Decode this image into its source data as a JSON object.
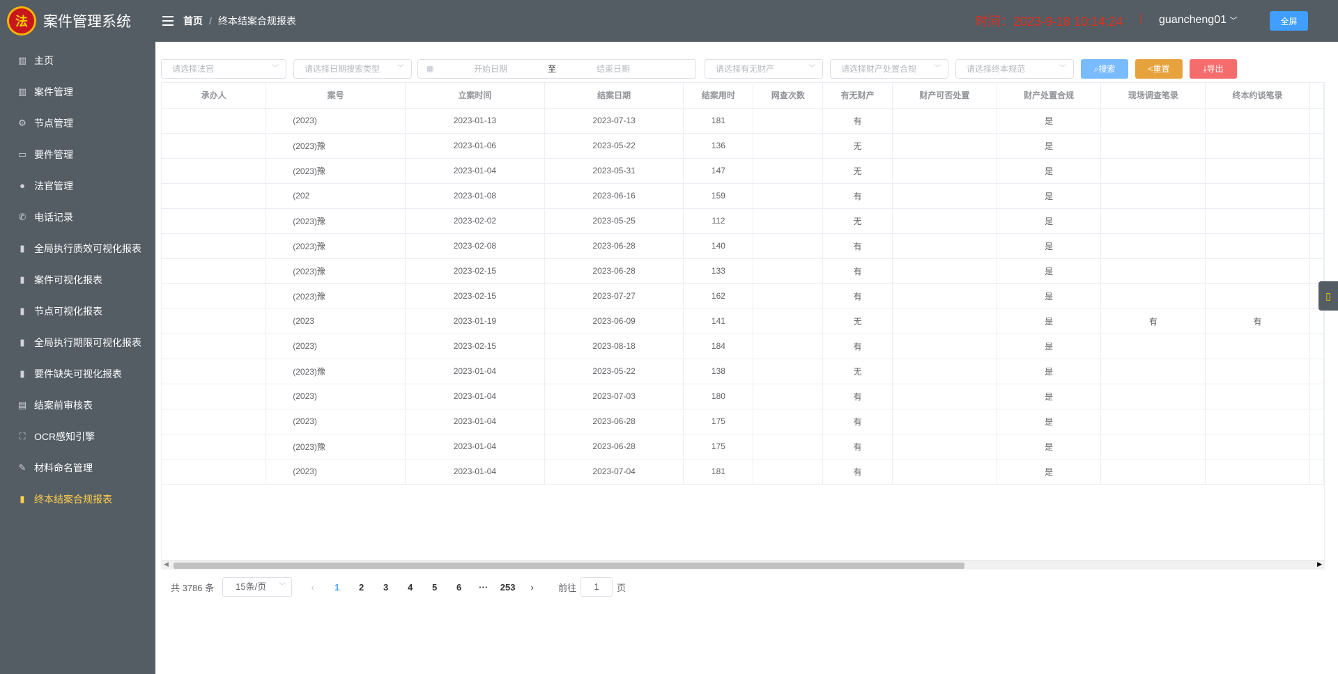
{
  "app": {
    "title": "案件管理系统",
    "emblem": "法"
  },
  "sidebar": {
    "items": [
      {
        "label": "主页",
        "icon": "menu-icon"
      },
      {
        "label": "案件管理",
        "icon": "chart-icon"
      },
      {
        "label": "节点管理",
        "icon": "gear-icon"
      },
      {
        "label": "要件管理",
        "icon": "folder-icon"
      },
      {
        "label": "法官管理",
        "icon": "user-icon"
      },
      {
        "label": "电话记录",
        "icon": "phone-icon"
      },
      {
        "label": "全局执行质效可视化报表",
        "icon": "bar-chart-icon"
      },
      {
        "label": "案件可视化报表",
        "icon": "bar-chart-icon"
      },
      {
        "label": "节点可视化报表",
        "icon": "bar-chart-icon"
      },
      {
        "label": "全局执行期限可视化报表",
        "icon": "bar-chart-icon"
      },
      {
        "label": "要件缺失可视化报表",
        "icon": "bar-chart-icon"
      },
      {
        "label": "结案前审核表",
        "icon": "document-icon"
      },
      {
        "label": "OCR感知引擎",
        "icon": "scan-icon"
      },
      {
        "label": "材料命名管理",
        "icon": "edit-icon"
      },
      {
        "label": "终本结案合规报表",
        "icon": "bar-chart-icon"
      }
    ]
  },
  "header": {
    "breadcrumb_home": "首页",
    "breadcrumb_sep": "/",
    "breadcrumb_current": "终本结案合规报表",
    "clock": "时间：2023-9-18 10:14:24",
    "clock_sep": "|",
    "user": "guancheng01",
    "fullscreen": "全屏"
  },
  "filters": {
    "judge_placeholder": "请选择法官",
    "date_type_placeholder": "请选择日期搜索类型",
    "start_date": "开始日期",
    "range_sep": "至",
    "end_date": "结束日期",
    "property_placeholder": "请选择有无财产",
    "disposal_placeholder": "请选择财产处置合规",
    "termination_placeholder": "请选择终本规范",
    "search": "搜索",
    "reset": "重置",
    "export": "导出"
  },
  "table": {
    "columns": [
      "承办人",
      "案号",
      "立案时间",
      "结案日期",
      "结案用时",
      "网查次数",
      "有无财产",
      "财产可否处置",
      "财产处置合规",
      "现场调查笔录",
      "终本约谈笔录"
    ],
    "rows": [
      [
        "",
        "(2023)",
        "2023-01-13",
        "2023-07-13",
        "181",
        "",
        "有",
        "",
        "是",
        "",
        ""
      ],
      [
        "",
        "(2023)豫",
        "2023-01-06",
        "2023-05-22",
        "136",
        "",
        "无",
        "",
        "是",
        "",
        ""
      ],
      [
        "",
        "(2023)豫",
        "2023-01-04",
        "2023-05-31",
        "147",
        "",
        "无",
        "",
        "是",
        "",
        ""
      ],
      [
        "",
        "(202",
        "2023-01-08",
        "2023-06-16",
        "159",
        "",
        "有",
        "",
        "是",
        "",
        ""
      ],
      [
        "",
        "(2023)豫",
        "2023-02-02",
        "2023-05-25",
        "112",
        "",
        "无",
        "",
        "是",
        "",
        ""
      ],
      [
        "",
        "(2023)豫",
        "2023-02-08",
        "2023-06-28",
        "140",
        "",
        "有",
        "",
        "是",
        "",
        ""
      ],
      [
        "",
        "(2023)豫",
        "2023-02-15",
        "2023-06-28",
        "133",
        "",
        "有",
        "",
        "是",
        "",
        ""
      ],
      [
        "",
        "(2023)豫",
        "2023-02-15",
        "2023-07-27",
        "162",
        "",
        "有",
        "",
        "是",
        "",
        ""
      ],
      [
        "",
        "(2023",
        "2023-01-19",
        "2023-06-09",
        "141",
        "",
        "无",
        "",
        "是",
        "有",
        "有"
      ],
      [
        "",
        "(2023)",
        "2023-02-15",
        "2023-08-18",
        "184",
        "",
        "有",
        "",
        "是",
        "",
        ""
      ],
      [
        "",
        "(2023)豫",
        "2023-01-04",
        "2023-05-22",
        "138",
        "",
        "无",
        "",
        "是",
        "",
        ""
      ],
      [
        "",
        "(2023)",
        "2023-01-04",
        "2023-07-03",
        "180",
        "",
        "有",
        "",
        "是",
        "",
        ""
      ],
      [
        "",
        "(2023)",
        "2023-01-04",
        "2023-06-28",
        "175",
        "",
        "有",
        "",
        "是",
        "",
        ""
      ],
      [
        "",
        "(2023)豫",
        "2023-01-04",
        "2023-06-28",
        "175",
        "",
        "有",
        "",
        "是",
        "",
        ""
      ],
      [
        "",
        "(2023)",
        "2023-01-04",
        "2023-07-04",
        "181",
        "",
        "有",
        "",
        "是",
        "",
        ""
      ]
    ]
  },
  "pagination": {
    "total": "共 3786 条",
    "page_size": "15条/页",
    "pages": [
      "1",
      "2",
      "3",
      "4",
      "5",
      "6",
      "···",
      "253"
    ],
    "goto_label": "前往",
    "goto_value": "1",
    "goto_suffix": "页"
  },
  "colors": {
    "sidebar_bg": "#545c64",
    "active": "#ffd04b",
    "primary": "#409eff",
    "warning": "#e6a23c",
    "danger": "#f56c6c",
    "clock": "#e0301e"
  }
}
